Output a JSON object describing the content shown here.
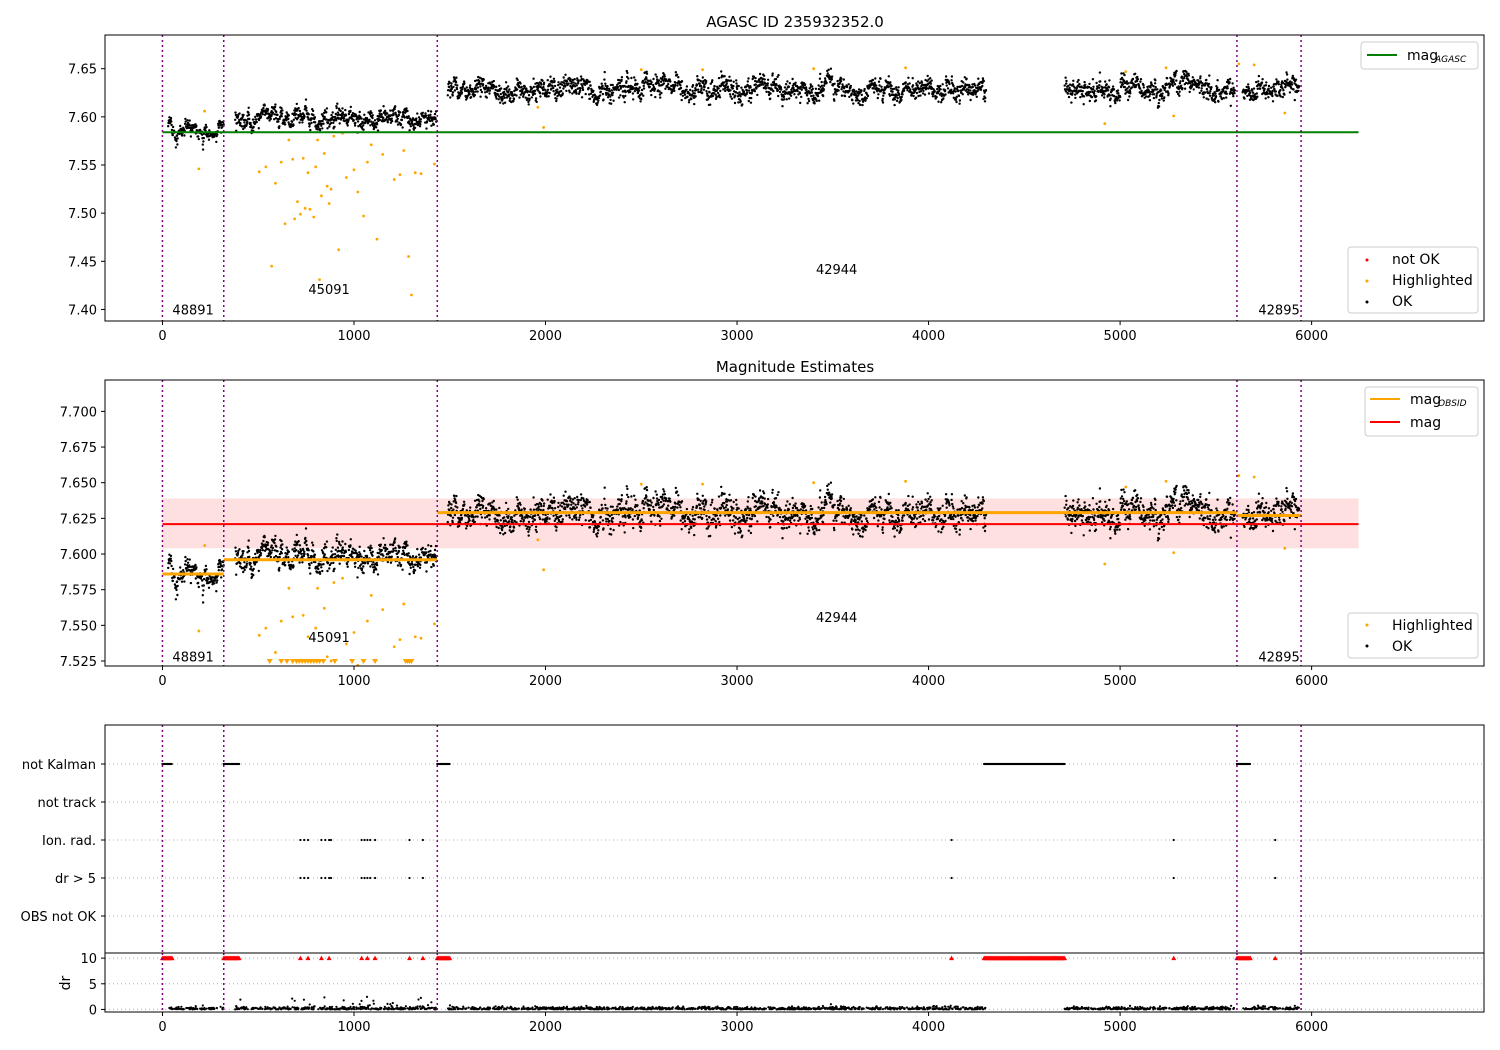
{
  "chart_data": [
    {
      "type": "scatter",
      "title": "AGASC ID 235932352.0",
      "xlim": [
        -300,
        6900
      ],
      "ylim": [
        7.388,
        7.685
      ],
      "yticks": [
        7.4,
        7.45,
        7.5,
        7.55,
        7.6,
        7.65
      ],
      "ytick_labels": [
        "7.40",
        "7.45",
        "7.50",
        "7.55",
        "7.60",
        "7.65"
      ],
      "xticks": [
        0,
        1000,
        2000,
        3000,
        4000,
        5000,
        6000
      ],
      "xtick_labels": [
        "0",
        "1000",
        "2000",
        "3000",
        "4000",
        "5000",
        "6000"
      ],
      "obs_boundaries": [
        0,
        320,
        1435,
        5610,
        5945
      ],
      "obsid_labels": [
        {
          "text": "48891",
          "x": 160,
          "y": 7.4
        },
        {
          "text": "45091",
          "x": 870,
          "y": 7.421
        },
        {
          "text": "42944",
          "x": 3520,
          "y": 7.442
        },
        {
          "text": "42895",
          "x": 5830,
          "y": 7.4
        }
      ],
      "mag_agasc": {
        "value": 7.584,
        "x_range": [
          0,
          6245
        ]
      },
      "segments": [
        {
          "x0": 30,
          "x1": 320,
          "mean": 7.587,
          "sd": 0.004,
          "gap": []
        },
        {
          "x0": 380,
          "x1": 1430,
          "mean": 7.597,
          "sd": 0.005,
          "gap": []
        },
        {
          "x0": 1490,
          "x1": 5600,
          "mean": 7.629,
          "sd": 0.006,
          "gap": [
            4300,
            4710
          ]
        },
        {
          "x0": 5640,
          "x1": 5935,
          "mean": 7.628,
          "sd": 0.007,
          "gap": []
        }
      ],
      "highlighted": [
        {
          "x": 190,
          "y": 7.546
        },
        {
          "x": 220,
          "y": 7.606
        },
        {
          "x": 505,
          "y": 7.543
        },
        {
          "x": 540,
          "y": 7.548
        },
        {
          "x": 570,
          "y": 7.445
        },
        {
          "x": 590,
          "y": 7.531
        },
        {
          "x": 620,
          "y": 7.553
        },
        {
          "x": 640,
          "y": 7.489
        },
        {
          "x": 660,
          "y": 7.576
        },
        {
          "x": 680,
          "y": 7.556
        },
        {
          "x": 690,
          "y": 7.494
        },
        {
          "x": 705,
          "y": 7.512
        },
        {
          "x": 720,
          "y": 7.499
        },
        {
          "x": 735,
          "y": 7.557
        },
        {
          "x": 745,
          "y": 7.505
        },
        {
          "x": 760,
          "y": 7.542
        },
        {
          "x": 770,
          "y": 7.504
        },
        {
          "x": 790,
          "y": 7.496
        },
        {
          "x": 800,
          "y": 7.548
        },
        {
          "x": 810,
          "y": 7.576
        },
        {
          "x": 820,
          "y": 7.431
        },
        {
          "x": 830,
          "y": 7.518
        },
        {
          "x": 845,
          "y": 7.562
        },
        {
          "x": 860,
          "y": 7.528
        },
        {
          "x": 870,
          "y": 7.51
        },
        {
          "x": 880,
          "y": 7.525
        },
        {
          "x": 895,
          "y": 7.58
        },
        {
          "x": 920,
          "y": 7.462
        },
        {
          "x": 940,
          "y": 7.583
        },
        {
          "x": 960,
          "y": 7.537
        },
        {
          "x": 1000,
          "y": 7.545
        },
        {
          "x": 1020,
          "y": 7.522
        },
        {
          "x": 1050,
          "y": 7.497
        },
        {
          "x": 1070,
          "y": 7.553
        },
        {
          "x": 1090,
          "y": 7.571
        },
        {
          "x": 1120,
          "y": 7.473
        },
        {
          "x": 1150,
          "y": 7.561
        },
        {
          "x": 1210,
          "y": 7.535
        },
        {
          "x": 1240,
          "y": 7.54
        },
        {
          "x": 1260,
          "y": 7.565
        },
        {
          "x": 1285,
          "y": 7.455
        },
        {
          "x": 1300,
          "y": 7.415
        },
        {
          "x": 1320,
          "y": 7.542
        },
        {
          "x": 1350,
          "y": 7.541
        },
        {
          "x": 1420,
          "y": 7.551
        },
        {
          "x": 1960,
          "y": 7.61
        },
        {
          "x": 1990,
          "y": 7.589
        },
        {
          "x": 2500,
          "y": 7.649
        },
        {
          "x": 2820,
          "y": 7.649
        },
        {
          "x": 3400,
          "y": 7.65
        },
        {
          "x": 3880,
          "y": 7.651
        },
        {
          "x": 4920,
          "y": 7.593
        },
        {
          "x": 5030,
          "y": 7.647
        },
        {
          "x": 5240,
          "y": 7.651
        },
        {
          "x": 5280,
          "y": 7.601
        },
        {
          "x": 5620,
          "y": 7.655
        },
        {
          "x": 5700,
          "y": 7.654
        },
        {
          "x": 5860,
          "y": 7.604
        }
      ],
      "not_ok": [],
      "legend_upper": [
        {
          "label": "mag",
          "subscript": "AGASC",
          "color": "#008000"
        }
      ],
      "legend_lower": [
        {
          "label": "not OK",
          "color": "#ff0000"
        },
        {
          "label": "Highlighted",
          "color": "#ffa500"
        },
        {
          "label": "OK",
          "color": "#000000"
        }
      ]
    },
    {
      "type": "scatter",
      "title": "Magnitude Estimates",
      "xlim": [
        -300,
        6900
      ],
      "ylim": [
        7.5215,
        7.722
      ],
      "yticks": [
        7.525,
        7.55,
        7.575,
        7.6,
        7.625,
        7.65,
        7.675,
        7.7
      ],
      "ytick_labels": [
        "7.525",
        "7.550",
        "7.575",
        "7.600",
        "7.625",
        "7.650",
        "7.675",
        "7.700"
      ],
      "xticks": [
        0,
        1000,
        2000,
        3000,
        4000,
        5000,
        6000
      ],
      "xtick_labels": [
        "0",
        "1000",
        "2000",
        "3000",
        "4000",
        "5000",
        "6000"
      ],
      "mag": {
        "value": 7.621,
        "band": [
          7.604,
          7.639
        ],
        "x_range": [
          0,
          6245
        ]
      },
      "mag_obsid": [
        {
          "x": [
            0,
            320
          ],
          "y": 7.586
        },
        {
          "x": [
            320,
            1435
          ],
          "y": 7.596
        },
        {
          "x": [
            1435,
            5610
          ],
          "y": 7.629
        },
        {
          "x": [
            5610,
            5945
          ],
          "y": 7.627
        }
      ],
      "obsid_labels": [
        {
          "text": "48891",
          "x": 160,
          "y": 7.528
        },
        {
          "text": "45091",
          "x": 870,
          "y": 7.542
        },
        {
          "text": "42944",
          "x": 3520,
          "y": 7.556
        },
        {
          "text": "42895",
          "x": 5830,
          "y": 7.528
        }
      ],
      "clipped_triangles_x": [
        560,
        620,
        650,
        680,
        700,
        715,
        730,
        745,
        760,
        775,
        790,
        805,
        820,
        840,
        900,
        990,
        1050,
        1110,
        1270,
        1280,
        1290,
        1300
      ],
      "legend_upper": [
        {
          "label": "mag",
          "subscript": "OBSID",
          "color": "#ffa500"
        },
        {
          "label": "mag",
          "subscript": "",
          "color": "#ff0000"
        }
      ],
      "legend_lower": [
        {
          "label": "Highlighted",
          "color": "#ffa500"
        },
        {
          "label": "OK",
          "color": "#000000"
        }
      ]
    },
    {
      "type": "scatter",
      "categories": [
        "not Kalman",
        "not track",
        "Ion. rad.",
        "dr > 5",
        "OBS not OK"
      ],
      "flags": {
        "not Kalman": [
          [
            0,
            50
          ],
          [
            320,
            400
          ],
          [
            1435,
            1500
          ],
          [
            4290,
            4710
          ],
          [
            5610,
            5680
          ]
        ],
        "not track": [],
        "Ion. rad.": [
          720,
          740,
          760,
          830,
          850,
          870,
          880,
          1040,
          1055,
          1070,
          1085,
          1110,
          1290,
          1360,
          4120,
          5280,
          5810
        ],
        "dr > 5": [
          720,
          740,
          760,
          830,
          850,
          870,
          880,
          1040,
          1055,
          1070,
          1085,
          1110,
          1290,
          1360,
          4120,
          5280,
          5810
        ],
        "OBS not OK": []
      },
      "xlim": [
        -300,
        6900
      ],
      "xticks": [
        0,
        1000,
        2000,
        3000,
        4000,
        5000,
        6000
      ],
      "xtick_labels": [
        "0",
        "1000",
        "2000",
        "3000",
        "4000",
        "5000",
        "6000"
      ]
    },
    {
      "type": "scatter",
      "ylabel": "dr",
      "ylim": [
        -0.5,
        11
      ],
      "yticks": [
        0,
        5,
        10
      ],
      "ytick_labels": [
        "0",
        "5",
        "10"
      ],
      "clipped_at": 10,
      "clipped_x": [
        [
          0,
          50
        ],
        [
          320,
          400
        ],
        [
          1435,
          1500
        ],
        [
          4290,
          4710
        ],
        [
          5610,
          5680
        ],
        720,
        760,
        830,
        870,
        1040,
        1070,
        1110,
        1290,
        1360,
        4120,
        5280,
        5810
      ],
      "xlim": [
        -300,
        6900
      ],
      "xticks": [
        0,
        1000,
        2000,
        3000,
        4000,
        5000,
        6000
      ],
      "xtick_labels": [
        "0",
        "1000",
        "2000",
        "3000",
        "4000",
        "5000",
        "6000"
      ]
    }
  ]
}
